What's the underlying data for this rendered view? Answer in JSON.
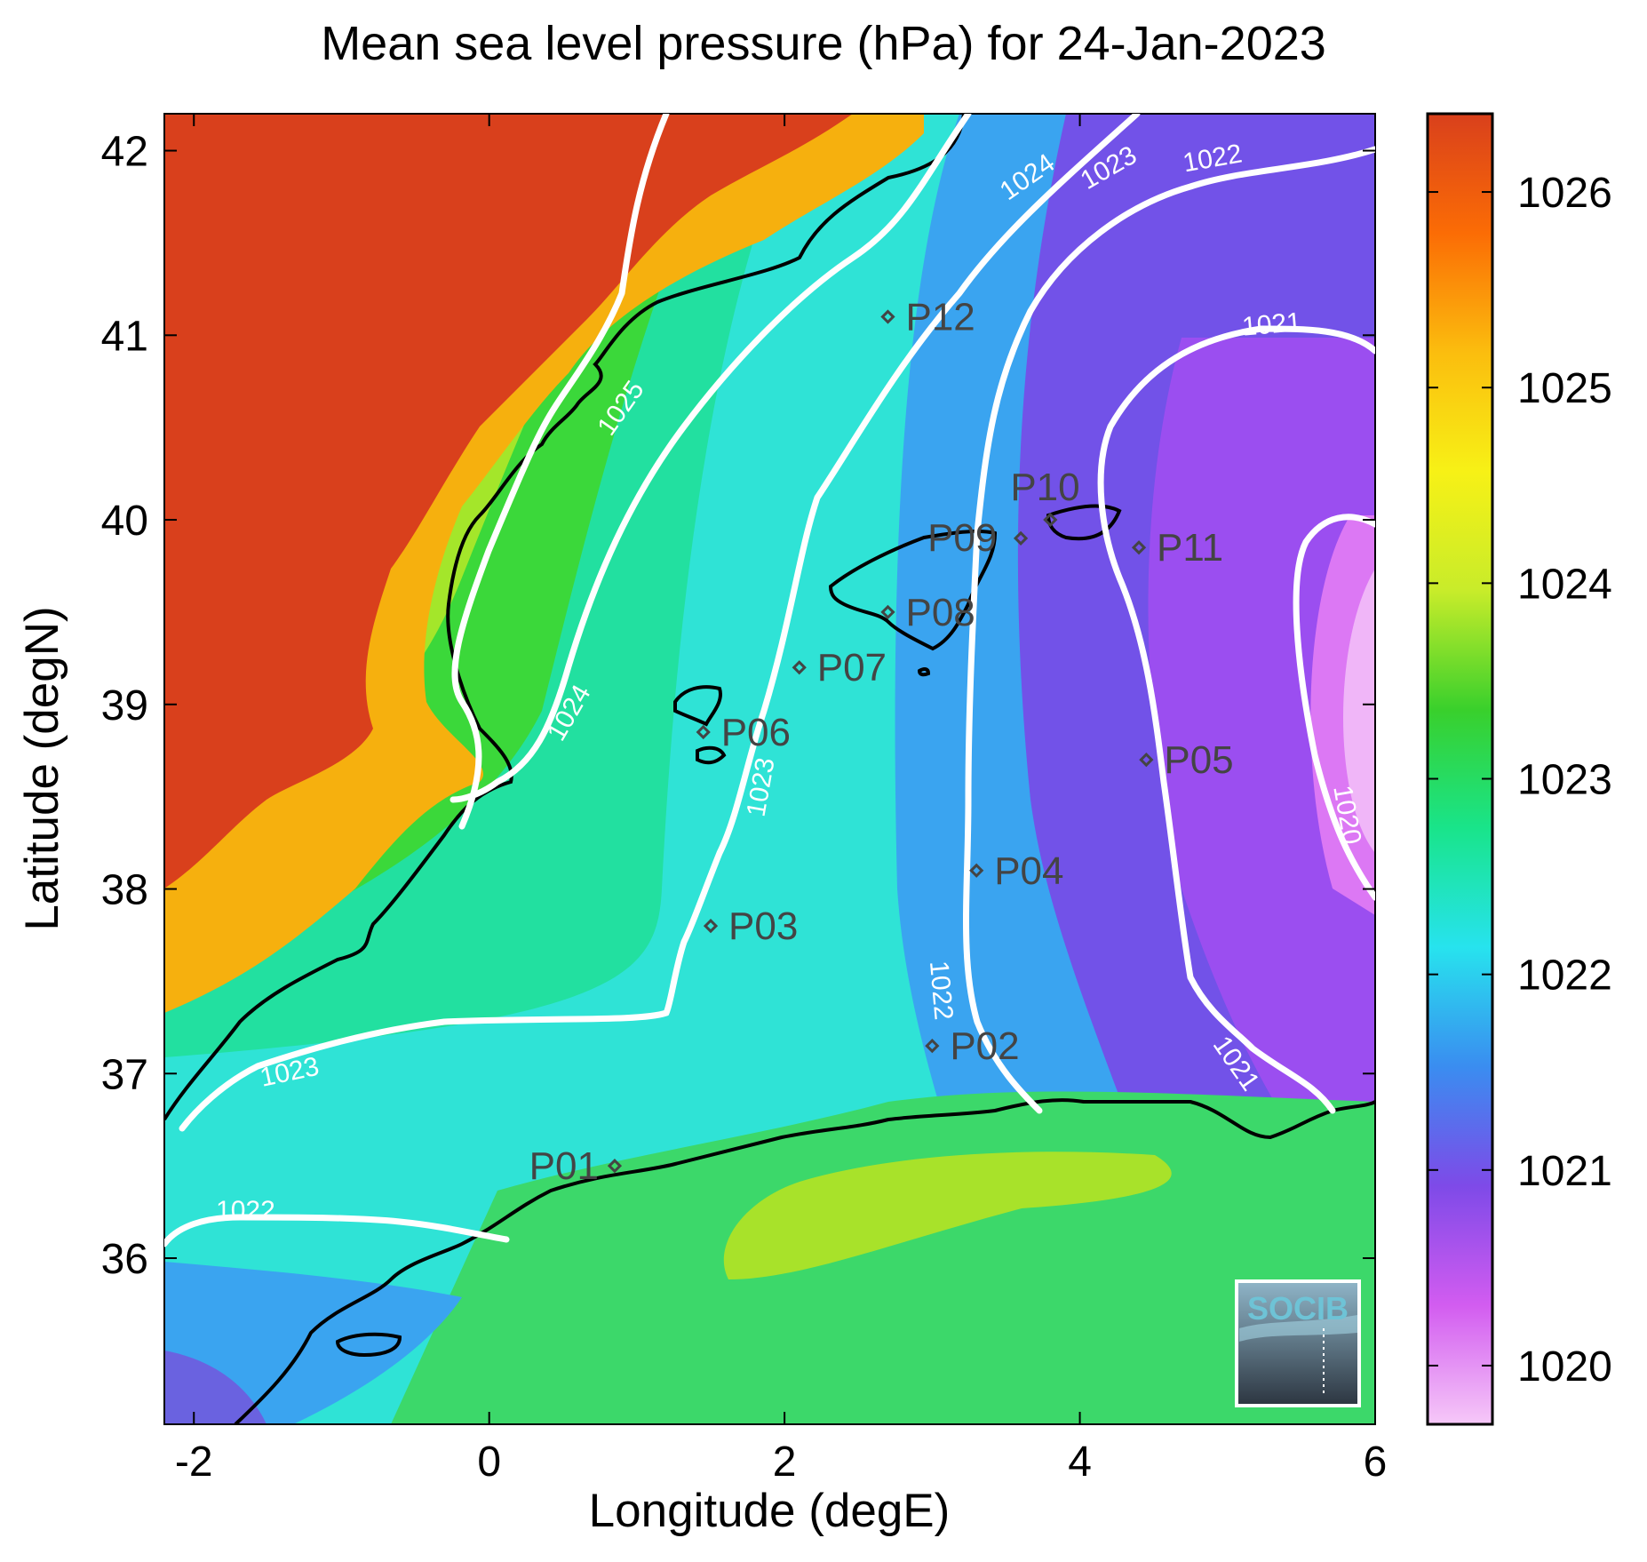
{
  "title": "Mean sea level pressure (hPa) for 24-Jan-2023",
  "chart_data": {
    "type": "heatmap",
    "xlabel": "Longitude (degE)",
    "ylabel": "Latitude (degN)",
    "xlim": [
      -2.2,
      6.0
    ],
    "ylim": [
      35.1,
      42.2
    ],
    "x_ticks": [
      "-2",
      "0",
      "2",
      "4",
      "6"
    ],
    "y_ticks": [
      "36",
      "37",
      "38",
      "39",
      "40",
      "41",
      "42"
    ],
    "colorbar": {
      "range": [
        1019.7,
        1026.4
      ],
      "ticks": [
        "1020",
        "1021",
        "1022",
        "1023",
        "1024",
        "1025",
        "1026"
      ],
      "colors": [
        "#f6c8f8",
        "#d25cf0",
        "#7e4ae8",
        "#3a8df0",
        "#27e3ee",
        "#19e48a",
        "#39d02c",
        "#c8ec2a",
        "#f7f116",
        "#fbbd0e",
        "#fb6c05",
        "#d9401c"
      ]
    },
    "contour_levels": [
      "1020",
      "1021",
      "1022",
      "1023",
      "1024",
      "1025"
    ],
    "contour_labels": [
      {
        "text": "1025",
        "lon": 0.9,
        "lat": 40.6,
        "angle": -55
      },
      {
        "text": "1024",
        "lon": 3.65,
        "lat": 41.85,
        "angle": -35
      },
      {
        "text": "1023",
        "lon": 4.2,
        "lat": 41.9,
        "angle": -30
      },
      {
        "text": "1022",
        "lon": 4.9,
        "lat": 41.95,
        "angle": -10
      },
      {
        "text": "1021",
        "lon": 5.3,
        "lat": 41.05,
        "angle": -5
      },
      {
        "text": "1024",
        "lon": 0.55,
        "lat": 38.95,
        "angle": -60
      },
      {
        "text": "1023",
        "lon": 1.85,
        "lat": 38.55,
        "angle": -80
      },
      {
        "text": "1022",
        "lon": 3.05,
        "lat": 37.45,
        "angle": 85
      },
      {
        "text": "1021",
        "lon": 5.05,
        "lat": 37.05,
        "angle": 55
      },
      {
        "text": "1020",
        "lon": 5.8,
        "lat": 38.4,
        "angle": 80
      },
      {
        "text": "1023",
        "lon": -1.35,
        "lat": 37.0,
        "angle": -12
      },
      {
        "text": "1022",
        "lon": -1.65,
        "lat": 36.25,
        "angle": 0
      }
    ],
    "points": [
      {
        "name": "P01",
        "lon": 0.85,
        "lat": 36.5
      },
      {
        "name": "P02",
        "lon": 3.0,
        "lat": 37.15
      },
      {
        "name": "P03",
        "lon": 1.5,
        "lat": 37.8
      },
      {
        "name": "P04",
        "lon": 3.3,
        "lat": 38.1
      },
      {
        "name": "P05",
        "lon": 4.45,
        "lat": 38.7
      },
      {
        "name": "P06",
        "lon": 1.45,
        "lat": 38.85
      },
      {
        "name": "P07",
        "lon": 2.1,
        "lat": 39.2
      },
      {
        "name": "P08",
        "lon": 2.7,
        "lat": 39.5
      },
      {
        "name": "P09",
        "lon": 3.6,
        "lat": 39.9
      },
      {
        "name": "P10",
        "lon": 3.8,
        "lat": 40.0
      },
      {
        "name": "P11",
        "lon": 4.4,
        "lat": 39.85
      },
      {
        "name": "P12",
        "lon": 2.7,
        "lat": 41.1
      }
    ]
  },
  "logo": {
    "text": "SOCIB",
    "color": "#6ec3d6"
  }
}
